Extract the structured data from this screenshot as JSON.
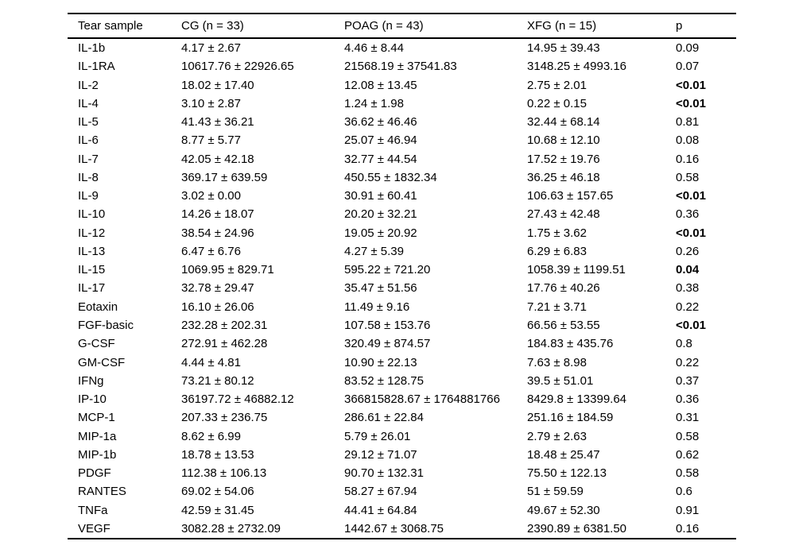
{
  "table": {
    "columns": [
      "Tear sample",
      "CG (n = 33)",
      "POAG (n = 43)",
      "XFG (n = 15)",
      "p"
    ],
    "rows": [
      {
        "analyte": "IL-1b",
        "cg": "4.17 ± 2.67",
        "poag": "4.46 ± 8.44",
        "xfg": "14.95 ± 39.43",
        "p": "0.09",
        "p_bold": false
      },
      {
        "analyte": "IL-1RA",
        "cg": "10617.76 ± 22926.65",
        "poag": "21568.19 ± 37541.83",
        "xfg": "3148.25 ± 4993.16",
        "p": "0.07",
        "p_bold": false
      },
      {
        "analyte": "IL-2",
        "cg": "18.02 ± 17.40",
        "poag": "12.08 ± 13.45",
        "xfg": "2.75 ± 2.01",
        "p": "<0.01",
        "p_bold": true
      },
      {
        "analyte": "IL-4",
        "cg": "3.10 ± 2.87",
        "poag": "1.24 ± 1.98",
        "xfg": "0.22 ± 0.15",
        "p": "<0.01",
        "p_bold": true
      },
      {
        "analyte": "IL-5",
        "cg": "41.43 ± 36.21",
        "poag": "36.62 ± 46.46",
        "xfg": "32.44 ± 68.14",
        "p": "0.81",
        "p_bold": false
      },
      {
        "analyte": "IL-6",
        "cg": "8.77 ± 5.77",
        "poag": "25.07 ± 46.94",
        "xfg": "10.68 ± 12.10",
        "p": "0.08",
        "p_bold": false
      },
      {
        "analyte": "IL-7",
        "cg": "42.05 ± 42.18",
        "poag": "32.77 ± 44.54",
        "xfg": "17.52 ± 19.76",
        "p": "0.16",
        "p_bold": false
      },
      {
        "analyte": "IL-8",
        "cg": "369.17 ± 639.59",
        "poag": "450.55 ± 1832.34",
        "xfg": "36.25 ± 46.18",
        "p": "0.58",
        "p_bold": false
      },
      {
        "analyte": "IL-9",
        "cg": "3.02 ± 0.00",
        "poag": "30.91 ± 60.41",
        "xfg": "106.63 ± 157.65",
        "p": "<0.01",
        "p_bold": true
      },
      {
        "analyte": "IL-10",
        "cg": "14.26 ± 18.07",
        "poag": "20.20 ± 32.21",
        "xfg": "27.43 ± 42.48",
        "p": "0.36",
        "p_bold": false
      },
      {
        "analyte": "IL-12",
        "cg": "38.54 ± 24.96",
        "poag": "19.05 ± 20.92",
        "xfg": "1.75 ± 3.62",
        "p": "<0.01",
        "p_bold": true
      },
      {
        "analyte": "IL-13",
        "cg": "6.47 ± 6.76",
        "poag": "4.27 ± 5.39",
        "xfg": "6.29 ± 6.83",
        "p": "0.26",
        "p_bold": false
      },
      {
        "analyte": "IL-15",
        "cg": "1069.95 ± 829.71",
        "poag": "595.22 ± 721.20",
        "xfg": "1058.39 ± 1199.51",
        "p": "0.04",
        "p_bold": true
      },
      {
        "analyte": "IL-17",
        "cg": "32.78 ± 29.47",
        "poag": "35.47 ± 51.56",
        "xfg": "17.76 ± 40.26",
        "p": "0.38",
        "p_bold": false
      },
      {
        "analyte": "Eotaxin",
        "cg": "16.10 ± 26.06",
        "poag": "11.49 ± 9.16",
        "xfg": "7.21 ± 3.71",
        "p": "0.22",
        "p_bold": false
      },
      {
        "analyte": "FGF-basic",
        "cg": "232.28 ± 202.31",
        "poag": "107.58 ± 153.76",
        "xfg": "66.56 ± 53.55",
        "p": "<0.01",
        "p_bold": true
      },
      {
        "analyte": "G-CSF",
        "cg": "272.91 ± 462.28",
        "poag": "320.49 ± 874.57",
        "xfg": "184.83 ± 435.76",
        "p": "0.8",
        "p_bold": false
      },
      {
        "analyte": "GM-CSF",
        "cg": "4.44 ± 4.81",
        "poag": "10.90 ± 22.13",
        "xfg": "7.63 ± 8.98",
        "p": "0.22",
        "p_bold": false
      },
      {
        "analyte": "IFNg",
        "cg": "73.21 ± 80.12",
        "poag": "83.52 ± 128.75",
        "xfg": "39.5 ± 51.01",
        "p": "0.37",
        "p_bold": false
      },
      {
        "analyte": "IP-10",
        "cg": "36197.72 ± 46882.12",
        "poag": "366815828.67 ± 1764881766",
        "xfg": "8429.8 ± 13399.64",
        "p": "0.36",
        "p_bold": false
      },
      {
        "analyte": "MCP-1",
        "cg": "207.33 ± 236.75",
        "poag": "286.61 ± 22.84",
        "xfg": "251.16 ± 184.59",
        "p": "0.31",
        "p_bold": false
      },
      {
        "analyte": "MIP-1a",
        "cg": "8.62 ± 6.99",
        "poag": "5.79 ± 26.01",
        "xfg": "2.79 ± 2.63",
        "p": "0.58",
        "p_bold": false
      },
      {
        "analyte": "MIP-1b",
        "cg": "18.78 ± 13.53",
        "poag": "29.12 ± 71.07",
        "xfg": "18.48 ± 25.47",
        "p": "0.62",
        "p_bold": false
      },
      {
        "analyte": "PDGF",
        "cg": "112.38 ± 106.13",
        "poag": "90.70 ± 132.31",
        "xfg": "75.50 ± 122.13",
        "p": "0.58",
        "p_bold": false
      },
      {
        "analyte": "RANTES",
        "cg": "69.02 ± 54.06",
        "poag": "58.27 ± 67.94",
        "xfg": "51 ± 59.59",
        "p": "0.6",
        "p_bold": false
      },
      {
        "analyte": "TNFa",
        "cg": "42.59 ± 31.45",
        "poag": "44.41 ± 64.84",
        "xfg": "49.67 ± 52.30",
        "p": "0.91",
        "p_bold": false
      },
      {
        "analyte": "VEGF",
        "cg": "3082.28 ± 2732.09",
        "poag": "1442.67 ± 3068.75",
        "xfg": "2390.89 ± 6381.50",
        "p": "0.16",
        "p_bold": false
      }
    ]
  }
}
